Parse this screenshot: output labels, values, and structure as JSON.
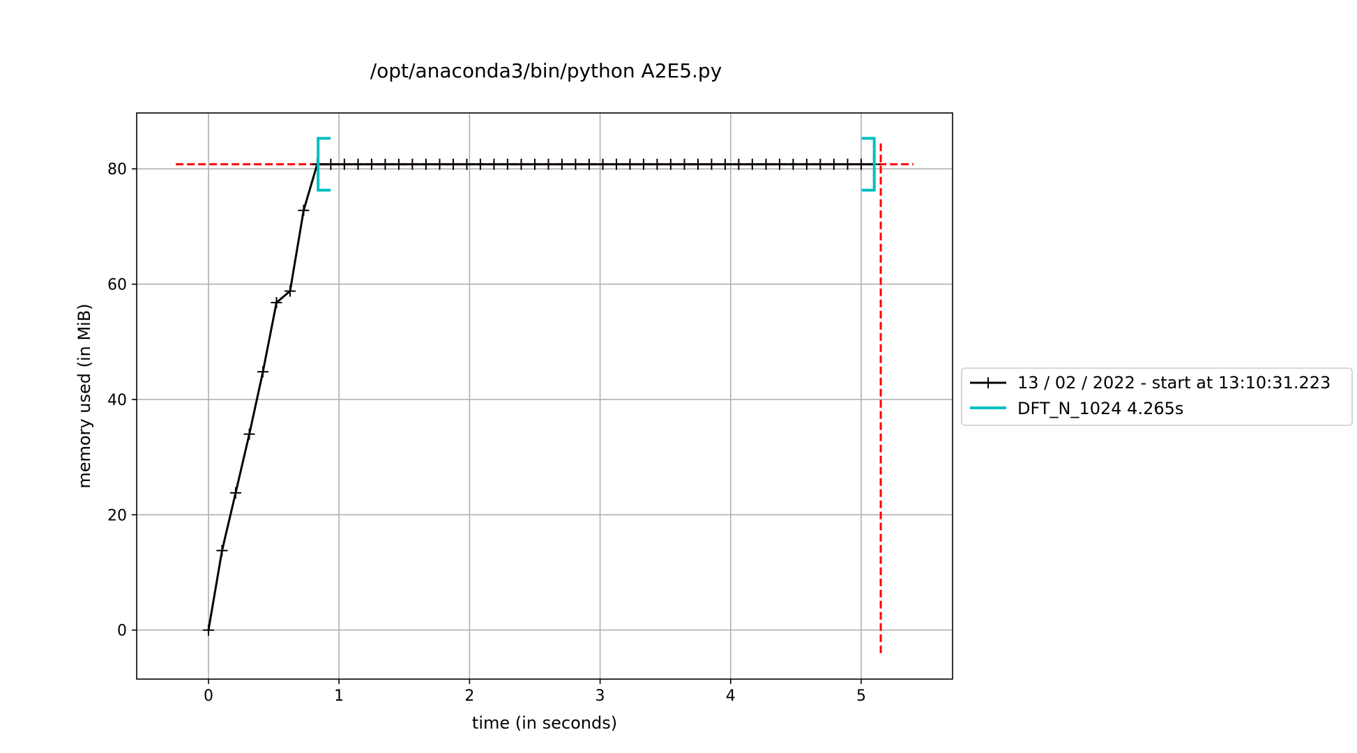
{
  "chart_data": {
    "type": "line",
    "title": "/opt/anaconda3/bin/python A2E5.py",
    "xlabel": "time (in seconds)",
    "ylabel": "memory used (in MiB)",
    "xlim": [
      -0.55,
      5.7
    ],
    "ylim": [
      -8.5,
      89.7
    ],
    "xticks": [
      0,
      1,
      2,
      3,
      4,
      5
    ],
    "yticks": [
      0,
      20,
      40,
      60,
      80
    ],
    "grid": true,
    "legend_position": "outside-right",
    "series": [
      {
        "name": "13 / 02 / 2022 - start at 13:10:31.223",
        "color": "#000000",
        "marker": "plus",
        "x": [
          0.0,
          0.104,
          0.208,
          0.313,
          0.417,
          0.521,
          0.625,
          0.729,
          0.833,
          0.937,
          1.041,
          1.146,
          1.25,
          1.354,
          1.458,
          1.562,
          1.666,
          1.771,
          1.875,
          1.979,
          2.083,
          2.187,
          2.291,
          2.396,
          2.5,
          2.604,
          2.708,
          2.812,
          2.916,
          3.021,
          3.125,
          3.229,
          3.333,
          3.437,
          3.541,
          3.646,
          3.75,
          3.854,
          3.958,
          4.062,
          4.166,
          4.271,
          4.375,
          4.479,
          4.583,
          4.687,
          4.791,
          4.896,
          5.0,
          5.104
        ],
        "y": [
          0,
          13.8,
          23.8,
          34.0,
          44.8,
          56.8,
          58.8,
          72.8,
          80.8,
          80.8,
          80.8,
          80.8,
          80.8,
          80.8,
          80.8,
          80.8,
          80.8,
          80.8,
          80.8,
          80.8,
          80.8,
          80.8,
          80.8,
          80.8,
          80.8,
          80.8,
          80.8,
          80.8,
          80.8,
          80.8,
          80.8,
          80.8,
          80.8,
          80.8,
          80.8,
          80.8,
          80.8,
          80.8,
          80.8,
          80.8,
          80.8,
          80.8,
          80.8,
          80.8,
          80.8,
          80.8,
          80.8,
          80.8,
          80.8,
          80.8
        ]
      },
      {
        "name": "DFT_N_1024 4.265s",
        "color": "#00bfbf",
        "type": "bracket",
        "start_x": 0.84,
        "end_x": 5.1,
        "y_low": 76.3,
        "y_high": 85.3
      }
    ],
    "reference_lines": [
      {
        "orientation": "horizontal",
        "y": 80.8,
        "x_from": -0.25,
        "x_to": 5.4,
        "color": "#ff0000",
        "style": "dashed"
      },
      {
        "orientation": "vertical",
        "x": 5.15,
        "y_from": -4.0,
        "y_to": 84.5,
        "color": "#ff0000",
        "style": "dashed"
      }
    ]
  }
}
